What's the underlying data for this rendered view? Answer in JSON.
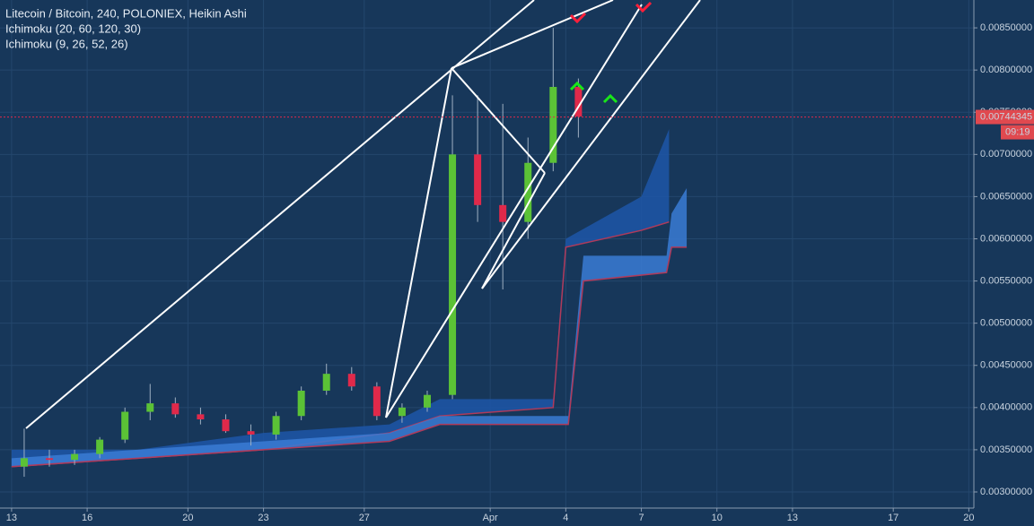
{
  "chart_data": {
    "type": "candlestick",
    "title": "Litecoin / Bitcoin, 240, POLONIEX, Heikin Ashi",
    "up_color": "#5bc236",
    "down_color": "#e0294a",
    "x": [
      0.5,
      1.5,
      2.5,
      3.5,
      4.5,
      5.5,
      6.5,
      7.5,
      8.5,
      9.5,
      10.5,
      11.5,
      12.5,
      13.5,
      14.5,
      15.5,
      16.5,
      17.5,
      18.5,
      19.5,
      20.5,
      21.5,
      22.5
    ],
    "open": [
      0.0033,
      0.0034,
      0.00338,
      0.00345,
      0.00362,
      0.00395,
      0.00405,
      0.00392,
      0.00386,
      0.00372,
      0.00368,
      0.0039,
      0.0042,
      0.0044,
      0.00425,
      0.0039,
      0.004,
      0.00415,
      0.007,
      0.0064,
      0.0062,
      0.0069,
      0.0078
    ],
    "high": [
      0.00375,
      0.0035,
      0.0035,
      0.00365,
      0.004,
      0.00428,
      0.00412,
      0.004,
      0.00392,
      0.0038,
      0.00395,
      0.00425,
      0.00452,
      0.00448,
      0.0043,
      0.00405,
      0.0042,
      0.0077,
      0.0077,
      0.0076,
      0.0072,
      0.0085,
      0.0079
    ],
    "low": [
      0.00318,
      0.0033,
      0.00332,
      0.0034,
      0.00358,
      0.00385,
      0.00388,
      0.0038,
      0.0037,
      0.00355,
      0.00362,
      0.00385,
      0.00415,
      0.0042,
      0.00385,
      0.00382,
      0.00395,
      0.0041,
      0.0062,
      0.0054,
      0.006,
      0.0068,
      0.0072
    ],
    "close": [
      0.0034,
      0.00338,
      0.00345,
      0.00362,
      0.00395,
      0.00405,
      0.00392,
      0.00386,
      0.00372,
      0.00368,
      0.0039,
      0.0042,
      0.0044,
      0.00425,
      0.0039,
      0.004,
      0.00415,
      0.007,
      0.0064,
      0.0062,
      0.0069,
      0.0078,
      0.00745
    ],
    "clouds": [
      {
        "name": "Ichimoku (20, 60, 120, 30)",
        "color": "#1d56a8",
        "x": [
          0,
          5,
          10,
          15,
          17,
          21.5,
          22,
          25,
          26.1
        ],
        "upper": [
          0.0035,
          0.0035,
          0.0037,
          0.0038,
          0.0041,
          0.0041,
          0.006,
          0.0065,
          0.0073
        ],
        "lower": [
          0.0033,
          0.0034,
          0.0035,
          0.0037,
          0.0039,
          0.004,
          0.0059,
          0.0061,
          0.0062
        ]
      },
      {
        "name": "Ichimoku (9, 26, 52, 26)",
        "color": "#3a7bd5",
        "x": [
          0,
          5,
          10,
          15,
          17,
          22.1,
          22.7,
          26,
          26.2,
          26.8
        ],
        "upper": [
          0.0034,
          0.0035,
          0.0036,
          0.0037,
          0.0039,
          0.0039,
          0.0058,
          0.0058,
          0.0063,
          0.0066
        ],
        "lower": [
          0.0033,
          0.0034,
          0.0035,
          0.0036,
          0.0038,
          0.0038,
          0.0055,
          0.0056,
          0.0059,
          0.0059
        ]
      }
    ],
    "last_price": {
      "value": 0.00744345,
      "label": "0.00744345"
    },
    "countdown": "09:19",
    "xlim": [
      -0.46,
      38.2
    ],
    "ylim": [
      0.00283,
      0.00883
    ],
    "xticks": [
      {
        "value": 0,
        "label": "13"
      },
      {
        "value": 3,
        "label": "16"
      },
      {
        "value": 7,
        "label": "20"
      },
      {
        "value": 10,
        "label": "23"
      },
      {
        "value": 14,
        "label": "27"
      },
      {
        "value": 19,
        "label": "Apr"
      },
      {
        "value": 22,
        "label": "4"
      },
      {
        "value": 25,
        "label": "7"
      },
      {
        "value": 28,
        "label": "10"
      },
      {
        "value": 31,
        "label": "13"
      },
      {
        "value": 35,
        "label": "17"
      },
      {
        "value": 38,
        "label": "20"
      }
    ],
    "yticks": [
      {
        "value": 0.003,
        "label": "0.00300000"
      },
      {
        "value": 0.0035,
        "label": "0.00350000"
      },
      {
        "value": 0.004,
        "label": "0.00400000"
      },
      {
        "value": 0.0045,
        "label": "0.00450000"
      },
      {
        "value": 0.005,
        "label": "0.00500000"
      },
      {
        "value": 0.0055,
        "label": "0.00550000"
      },
      {
        "value": 0.006,
        "label": "0.00600000"
      },
      {
        "value": 0.0065,
        "label": "0.00650000"
      },
      {
        "value": 0.007,
        "label": "0.00700000"
      },
      {
        "value": 0.0075,
        "label": "0.00750000"
      },
      {
        "value": 0.008,
        "label": "0.00800000"
      },
      {
        "value": 0.0085,
        "label": "0.00850000"
      }
    ],
    "grid": true
  }
}
